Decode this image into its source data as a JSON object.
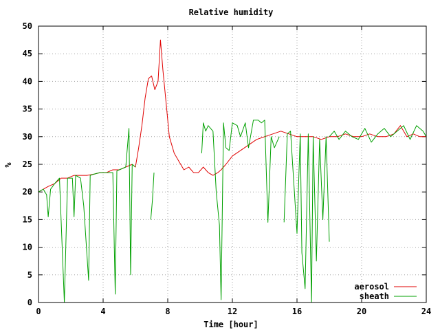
{
  "chart_data": {
    "type": "line",
    "title": "Relative humidity",
    "xlabel": "Time [hour]",
    "ylabel": "%",
    "xlim": [
      0,
      24
    ],
    "ylim": [
      0,
      50
    ],
    "x_ticks": [
      0,
      4,
      8,
      12,
      16,
      20,
      24
    ],
    "y_ticks": [
      0,
      5,
      10,
      15,
      20,
      25,
      30,
      35,
      40,
      45,
      50
    ],
    "grid": true,
    "legend_position": "bottom-right",
    "series": [
      {
        "name": "aerosol",
        "color": "#e00000",
        "x": [
          0,
          0.3,
          0.6,
          1.0,
          1.4,
          1.8,
          2.2,
          2.6,
          3.0,
          3.4,
          3.8,
          4.2,
          4.6,
          5.0,
          5.4,
          5.8,
          6.0,
          6.2,
          6.4,
          6.6,
          6.8,
          7.0,
          7.2,
          7.4,
          7.55,
          7.7,
          7.9,
          8.1,
          8.4,
          8.7,
          9.0,
          9.3,
          9.6,
          9.9,
          10.2,
          10.5,
          10.8,
          11.1,
          11.3,
          11.6,
          12.0,
          12.5,
          13.0,
          13.5,
          14.0,
          14.5,
          15.0,
          15.5,
          16.0,
          16.5,
          17.0,
          17.5,
          18.0,
          18.5,
          19.0,
          19.5,
          20.0,
          20.5,
          21.0,
          21.5,
          22.0,
          22.4,
          22.8,
          23.2,
          23.6,
          24.0
        ],
        "y": [
          20,
          20.5,
          21,
          21.5,
          22.5,
          22.5,
          23,
          23,
          23,
          23.2,
          23.5,
          23.5,
          24,
          24,
          24.5,
          25,
          24.5,
          28,
          32,
          37,
          40.5,
          41,
          38.5,
          40,
          47.5,
          42,
          36,
          30,
          27,
          25.5,
          24,
          24.5,
          23.5,
          23.5,
          24.5,
          23.5,
          23,
          23.5,
          24,
          25,
          26.5,
          27.5,
          28.5,
          29.5,
          30,
          30.5,
          31,
          30.5,
          30,
          30,
          30,
          29.5,
          30,
          30,
          30.5,
          30,
          30,
          30.5,
          30,
          30,
          30.5,
          32,
          30,
          30.5,
          30,
          30
        ]
      },
      {
        "name": "sheath",
        "color": "#00a000",
        "segments": [
          {
            "x": [
              0,
              0.3,
              0.5,
              0.6,
              0.75,
              1.0,
              1.3,
              1.6,
              1.8,
              2.1,
              2.2,
              2.3,
              2.6,
              2.8,
              3.1,
              3.2,
              3.4,
              3.8,
              4.2,
              4.6,
              4.75,
              4.85,
              5.0,
              5.4,
              5.6,
              5.7,
              5.8,
              6.0
            ],
            "y": [
              20,
              20.5,
              19.5,
              15.5,
              20.5,
              21.5,
              22.5,
              0,
              22.5,
              22.5,
              15.5,
              23,
              22.5,
              17.5,
              4,
              23,
              23.2,
              23.5,
              23.5,
              23.5,
              1.5,
              23.8,
              24,
              24.5,
              31.5,
              5,
              25,
              24.5
            ]
          },
          {
            "x": [
              6.95,
              7.05,
              7.15
            ],
            "y": [
              15,
              18.5,
              23.5
            ]
          },
          {
            "x": [
              10.1,
              10.2,
              10.35,
              10.5,
              10.8,
              11.0,
              11.2,
              11.3,
              11.45,
              11.6,
              11.8,
              12.0,
              12.3,
              12.5,
              12.8,
              13.0,
              13.3,
              13.6,
              13.8,
              14.0,
              14.2,
              14.4,
              14.6,
              14.9
            ],
            "y": [
              27,
              32.5,
              31,
              32,
              31,
              20,
              14,
              0.5,
              32.5,
              28,
              27.5,
              32.5,
              32,
              30,
              32.5,
              28,
              33,
              33,
              32.5,
              33,
              14.5,
              30,
              28,
              30
            ]
          },
          {
            "x": [
              15.2,
              15.4,
              15.6,
              16.0,
              16.2,
              16.3,
              16.5,
              16.7,
              16.9,
              17.0,
              17.2,
              17.4,
              17.6,
              17.8,
              18.0
            ],
            "y": [
              14.5,
              30.5,
              31,
              12.5,
              30.5,
              9,
              2.5,
              30.5,
              0,
              30,
              7.5,
              29.5,
              15,
              30,
              11
            ]
          },
          {
            "x": [
              18.0,
              18.3,
              18.6,
              19.0,
              19.4,
              19.8,
              20.2,
              20.6,
              21.0,
              21.4,
              21.8,
              22.2,
              22.6,
              23.0,
              23.4,
              23.8,
              24.0
            ],
            "y": [
              30,
              31,
              29.5,
              31,
              30,
              29.5,
              31.5,
              29,
              30.5,
              31.5,
              30,
              31,
              32,
              29.5,
              32,
              31,
              30
            ]
          }
        ]
      }
    ]
  }
}
